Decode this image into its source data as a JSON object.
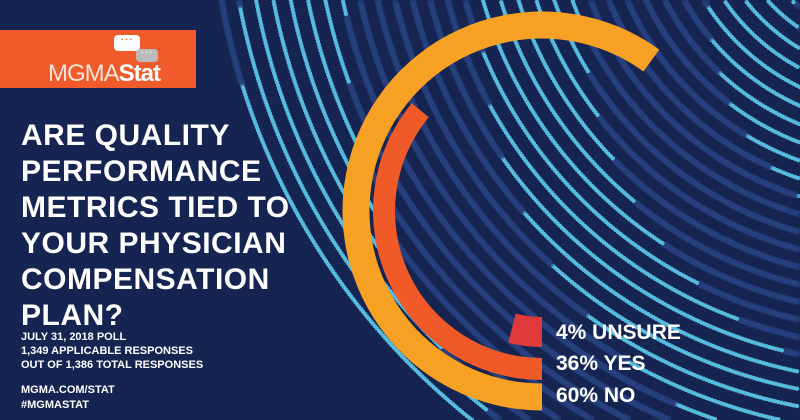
{
  "brand": {
    "logo_part1": "MGMA",
    "logo_part2": "Stat",
    "bubble_text": "...",
    "banner_color": "#F15A2B"
  },
  "title_lines": [
    "ARE QUALITY",
    "PERFORMANCE",
    "METRICS TIED TO",
    "YOUR PHYSICIAN",
    "COMPENSATION",
    "PLAN?"
  ],
  "meta": {
    "poll_date": "JULY 31, 2018 POLL",
    "applicable": "1,349 APPLICABLE RESPONSES",
    "total": "OUT OF 1,386 TOTAL RESPONSES"
  },
  "links": {
    "url": "MGMA.COM/STAT",
    "hashtag": "#MGMASTAT"
  },
  "colors": {
    "background": "#162452",
    "dots": "#5BC8E8"
  },
  "chart_data": {
    "type": "radial-bar",
    "categories": [
      "UNSURE",
      "YES",
      "NO"
    ],
    "values": [
      4,
      36,
      60
    ],
    "unit": "%",
    "labels": [
      "4% UNSURE",
      "36% YES",
      "60% NO"
    ],
    "colors": [
      "#E0393A",
      "#F05A28",
      "#F7A124"
    ]
  }
}
